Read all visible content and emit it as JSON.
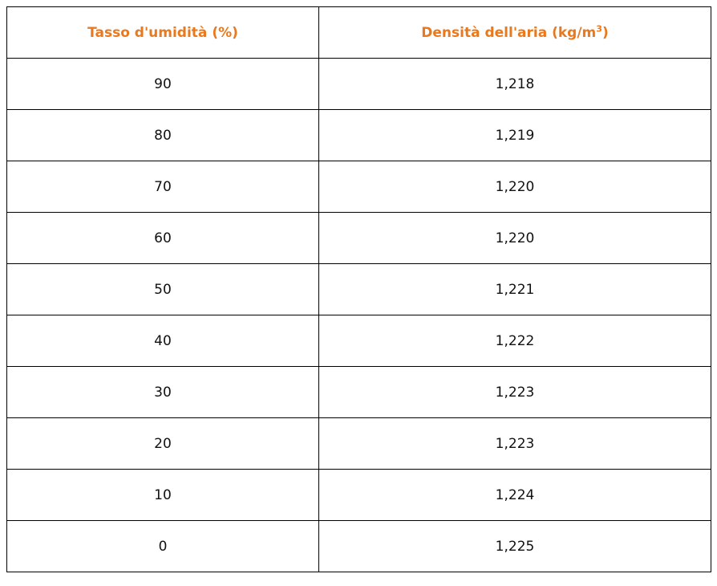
{
  "table": {
    "header_color": "#e8791f",
    "headers": {
      "humidity": "Tasso d'umidità (%)",
      "density_main": "Densità dell'aria (kg/m",
      "density_sup": "3",
      "density_close": ")"
    },
    "rows": [
      {
        "humidity": "90",
        "density": "1,218"
      },
      {
        "humidity": "80",
        "density": "1,219"
      },
      {
        "humidity": "70",
        "density": "1,220"
      },
      {
        "humidity": "60",
        "density": "1,220"
      },
      {
        "humidity": "50",
        "density": "1,221"
      },
      {
        "humidity": "40",
        "density": "1,222"
      },
      {
        "humidity": "30",
        "density": "1,223"
      },
      {
        "humidity": "20",
        "density": "1,223"
      },
      {
        "humidity": "10",
        "density": "1,224"
      },
      {
        "humidity": "0",
        "density": "1,225"
      }
    ]
  }
}
